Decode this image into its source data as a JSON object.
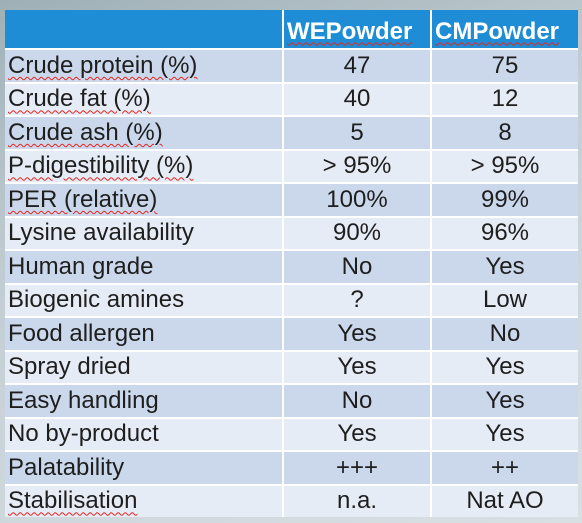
{
  "table": {
    "headers": {
      "we": "WEPowder",
      "cm": "CMPowder"
    },
    "rows": [
      {
        "label": "Crude protein (%)",
        "we": "47",
        "cm": "75"
      },
      {
        "label": "Crude fat (%)",
        "we": "40",
        "cm": "12"
      },
      {
        "label": "Crude ash (%)",
        "we": "5",
        "cm": "8"
      },
      {
        "label": "P-digestibility (%)",
        "we": "> 95%",
        "cm": "> 95%"
      },
      {
        "label": "PER (relative)",
        "we": "100%",
        "cm": "99%"
      },
      {
        "label": "Lysine availability",
        "we": "90%",
        "cm": "96%"
      },
      {
        "label": "Human grade",
        "we": "No",
        "cm": "Yes"
      },
      {
        "label": "Biogenic amines",
        "we": "?",
        "cm": "Low"
      },
      {
        "label": "Food allergen",
        "we": "Yes",
        "cm": "No"
      },
      {
        "label": "Spray dried",
        "we": "Yes",
        "cm": "Yes"
      },
      {
        "label": "Easy handling",
        "we": "No",
        "cm": "Yes"
      },
      {
        "label": "No by-product",
        "we": "Yes",
        "cm": "Yes"
      },
      {
        "label": "Palatability",
        "we": "+++",
        "cm": "++"
      },
      {
        "label": "Stabilisation",
        "we": "n.a.",
        "cm": "Nat AO"
      }
    ]
  },
  "colors": {
    "header_bg": "#1f8dd6",
    "header_text": "#ffffff",
    "row_band_dark": "#cbd8ec",
    "row_band_light": "#e6ecf6",
    "body_text": "#1e1e1e",
    "spellcheck_underline": "#e3261f"
  }
}
